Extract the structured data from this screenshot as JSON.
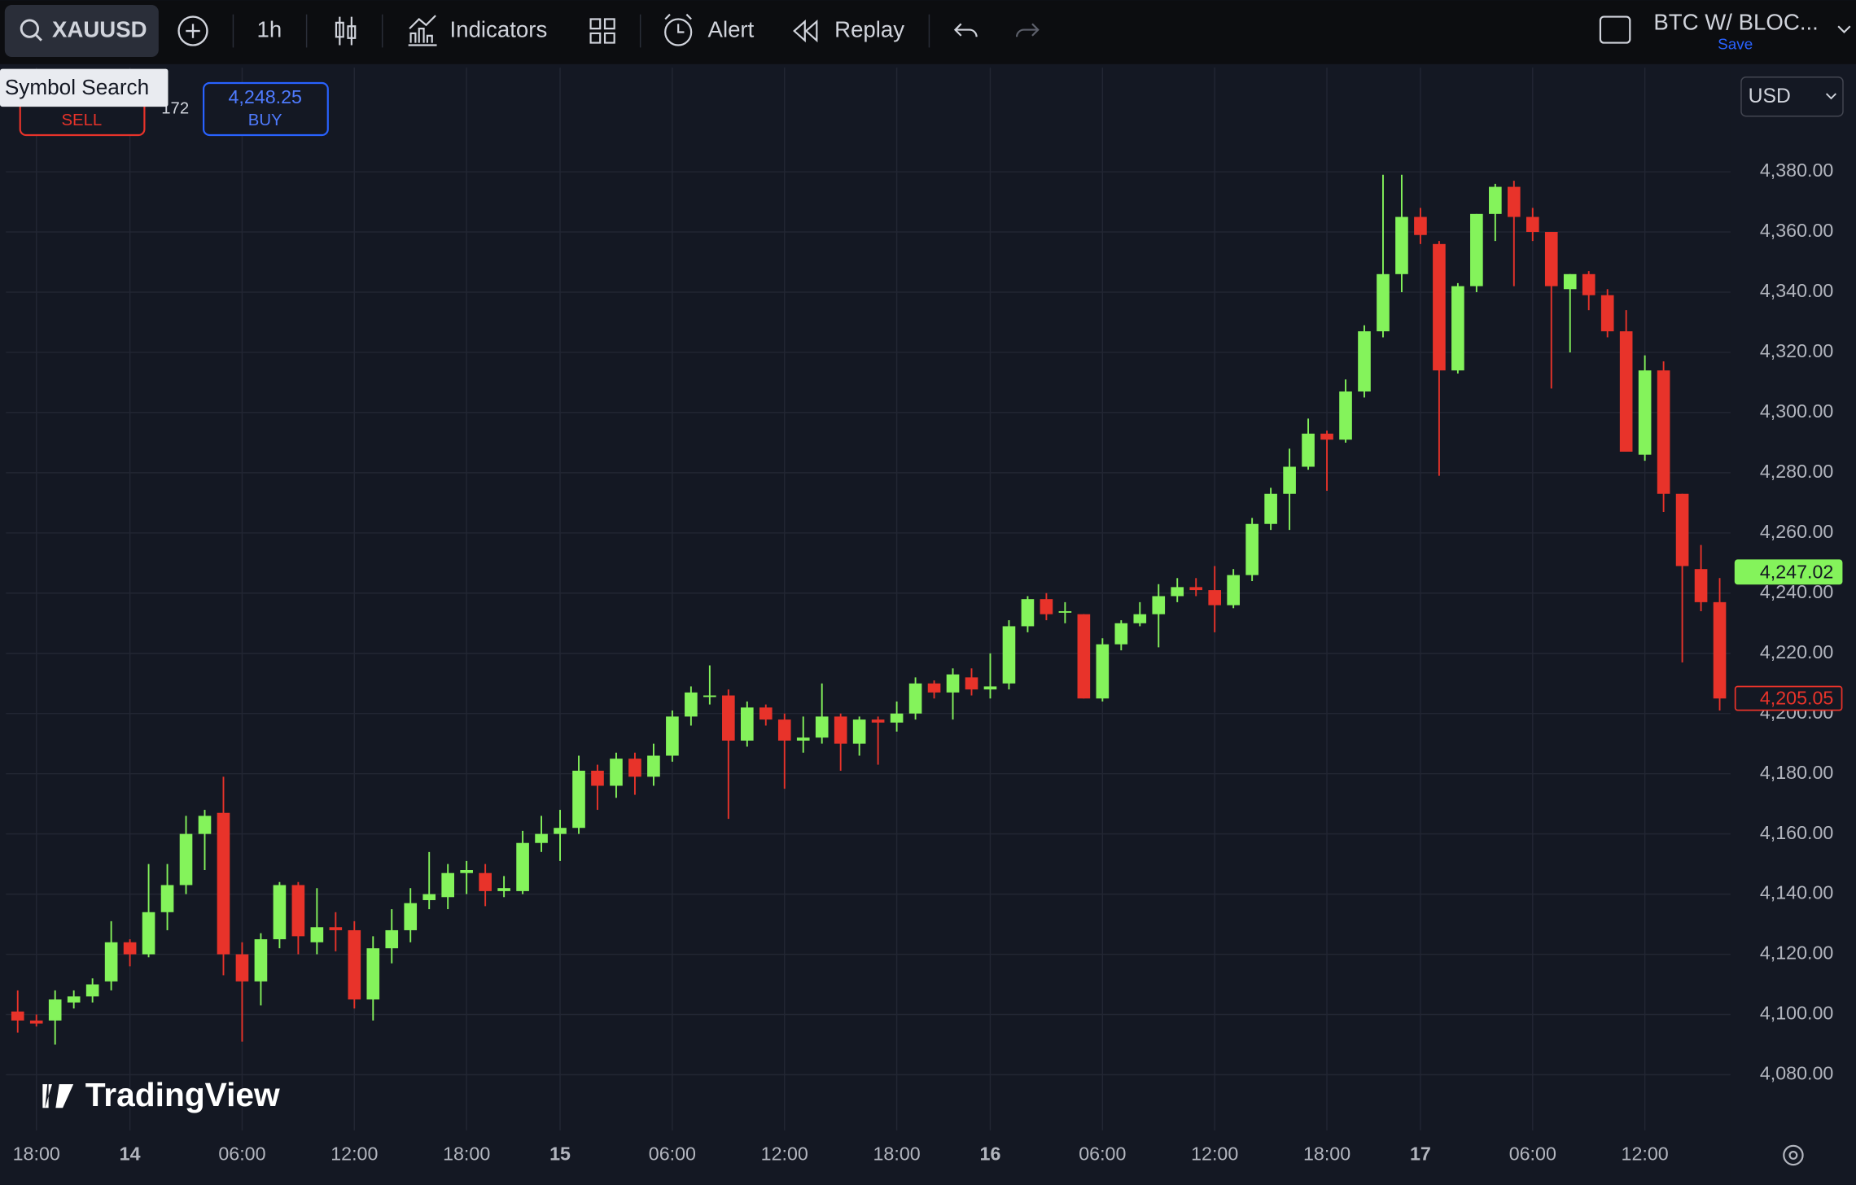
{
  "toolbar": {
    "symbol": "XAUUSD",
    "interval": "1h",
    "indicators": "Indicators",
    "alert": "Alert",
    "replay": "Replay",
    "layout_name": "BTC W/ BLOC...",
    "save": "Save"
  },
  "tooltip": "Symbol Search",
  "trade_panel": {
    "sell": "SELL",
    "spread": "172",
    "buy_price": "4,248.25",
    "buy": "BUY"
  },
  "currency": "USD",
  "watermark": "TradingView",
  "chart_data": {
    "type": "candlestick",
    "up_color": "#84f35b",
    "down_color": "#e8332a",
    "grid": true,
    "xlim": [
      -0.63,
      91.58
    ],
    "xticks": [
      {
        "value": 1,
        "label": "18:00"
      },
      {
        "value": 6,
        "label": "14"
      },
      {
        "value": 12,
        "label": "06:00"
      },
      {
        "value": 18,
        "label": "12:00"
      },
      {
        "value": 24,
        "label": "18:00"
      },
      {
        "value": 29,
        "label": "15"
      },
      {
        "value": 35,
        "label": "06:00"
      },
      {
        "value": 41,
        "label": "12:00"
      },
      {
        "value": 47,
        "label": "18:00"
      },
      {
        "value": 52,
        "label": "16"
      },
      {
        "value": 58,
        "label": "06:00"
      },
      {
        "value": 64,
        "label": "12:00"
      },
      {
        "value": 70,
        "label": "18:00"
      },
      {
        "value": 75,
        "label": "17"
      },
      {
        "value": 81,
        "label": "06:00"
      },
      {
        "value": 87,
        "label": "12:00"
      }
    ],
    "ylim": [
      4061.5,
      4414.6
    ],
    "yticks": [
      {
        "value": 4080,
        "label": "4,080.00"
      },
      {
        "value": 4100,
        "label": "4,100.00"
      },
      {
        "value": 4120,
        "label": "4,120.00"
      },
      {
        "value": 4140,
        "label": "4,140.00"
      },
      {
        "value": 4160,
        "label": "4,160.00"
      },
      {
        "value": 4180,
        "label": "4,180.00"
      },
      {
        "value": 4200,
        "label": "4,200.00"
      },
      {
        "value": 4220,
        "label": "4,220.00"
      },
      {
        "value": 4240,
        "label": "4,240.00"
      },
      {
        "value": 4260,
        "label": "4,260.00"
      },
      {
        "value": 4280,
        "label": "4,280.00"
      },
      {
        "value": 4300,
        "label": "4,300.00"
      },
      {
        "value": 4320,
        "label": "4,320.00"
      },
      {
        "value": 4340,
        "label": "4,340.00"
      },
      {
        "value": 4360,
        "label": "4,360.00"
      },
      {
        "value": 4380,
        "label": "4,380.00"
      }
    ],
    "open": [
      4101,
      4098,
      4098,
      4104,
      4106,
      4111,
      4124,
      4120,
      4134,
      4143,
      4160,
      4167,
      4120,
      4111,
      4125,
      4143,
      4124,
      4129,
      4128,
      4105,
      4122,
      4128,
      4138,
      4139,
      4147,
      4147,
      4141,
      4141,
      4157,
      4160,
      4162,
      4181,
      4176,
      4185,
      4179,
      4186,
      4199,
      4206,
      4206,
      4191,
      4202,
      4198,
      4191,
      4192,
      4199,
      4190,
      4198,
      4197,
      4200,
      4210,
      4207,
      4212,
      4208,
      4210,
      4229,
      4238,
      4234,
      4233,
      4205,
      4223,
      4230,
      4233,
      4239,
      4242,
      4241,
      4236,
      4246,
      4263,
      4273,
      4282,
      4293,
      4291,
      4307,
      4327,
      4346,
      4365,
      4356,
      4314,
      4342,
      4366,
      4375,
      4365,
      4360,
      4341,
      4346,
      4339,
      4327,
      4286,
      4314,
      4273,
      4248,
      4237
    ],
    "high": [
      4108,
      4100,
      4108,
      4108,
      4112,
      4131,
      4125,
      4150,
      4150,
      4166,
      4168,
      4179,
      4124,
      4127,
      4144,
      4144,
      4142,
      4134,
      4131,
      4126,
      4135,
      4142,
      4154,
      4150,
      4151,
      4150,
      4146,
      4161,
      4166,
      4168,
      4186,
      4183,
      4187,
      4187,
      4190,
      4201,
      4209,
      4216,
      4208,
      4204,
      4203,
      4200,
      4199,
      4210,
      4200,
      4199,
      4199,
      4204,
      4212,
      4211,
      4215,
      4215,
      4220,
      4231,
      4239,
      4240,
      4237,
      4233,
      4225,
      4231,
      4237,
      4243,
      4245,
      4245,
      4249,
      4248,
      4265,
      4275,
      4288,
      4298,
      4294,
      4311,
      4329,
      4379,
      4379,
      4368,
      4357,
      4343,
      4366,
      4376,
      4377,
      4368,
      4360,
      4346,
      4347,
      4341,
      4334,
      4319,
      4317,
      4273,
      4256,
      4245
    ],
    "low": [
      4094,
      4096,
      4090,
      4102,
      4104,
      4108,
      4116,
      4119,
      4128,
      4140,
      4148,
      4113,
      4091,
      4103,
      4122,
      4120,
      4120,
      4121,
      4102,
      4098,
      4117,
      4124,
      4135,
      4135,
      4140,
      4136,
      4139,
      4140,
      4154,
      4151,
      4160,
      4168,
      4172,
      4173,
      4176,
      4184,
      4196,
      4203,
      4165,
      4189,
      4196,
      4175,
      4187,
      4190,
      4181,
      4186,
      4183,
      4194,
      4198,
      4205,
      4198,
      4206,
      4205,
      4208,
      4227,
      4231,
      4230,
      4205,
      4204,
      4221,
      4229,
      4222,
      4237,
      4239,
      4227,
      4235,
      4244,
      4261,
      4261,
      4281,
      4274,
      4290,
      4305,
      4325,
      4340,
      4356,
      4279,
      4313,
      4340,
      4357,
      4342,
      4357,
      4308,
      4320,
      4334,
      4325,
      4287,
      4284,
      4267,
      4217,
      4234,
      4201
    ],
    "close": [
      4098,
      4097,
      4105,
      4106,
      4110,
      4124,
      4120,
      4134,
      4143,
      4160,
      4166,
      4120,
      4111,
      4125,
      4143,
      4126,
      4129,
      4128,
      4105,
      4122,
      4128,
      4137,
      4140,
      4147,
      4148,
      4141,
      4142,
      4157,
      4160,
      4162,
      4181,
      4176,
      4185,
      4179,
      4186,
      4199,
      4207,
      4206,
      4191,
      4202,
      4198,
      4191,
      4192,
      4199,
      4190,
      4198,
      4197,
      4200,
      4210,
      4207,
      4213,
      4208,
      4209,
      4229,
      4238,
      4233,
      4234,
      4205,
      4223,
      4230,
      4233,
      4239,
      4242,
      4241,
      4236,
      4246,
      4263,
      4273,
      4282,
      4293,
      4291,
      4307,
      4327,
      4346,
      4365,
      4359,
      4314,
      4342,
      4366,
      4375,
      4365,
      4360,
      4342,
      4346,
      4339,
      4327,
      4287,
      4314,
      4273,
      4249,
      4237,
      4205
    ],
    "price_labels": [
      {
        "value": 4247.02,
        "label": "4,247.02",
        "color": "#84f35b"
      },
      {
        "value": 4205.05,
        "label": "4,205.05",
        "color": "#e8332a"
      }
    ]
  }
}
